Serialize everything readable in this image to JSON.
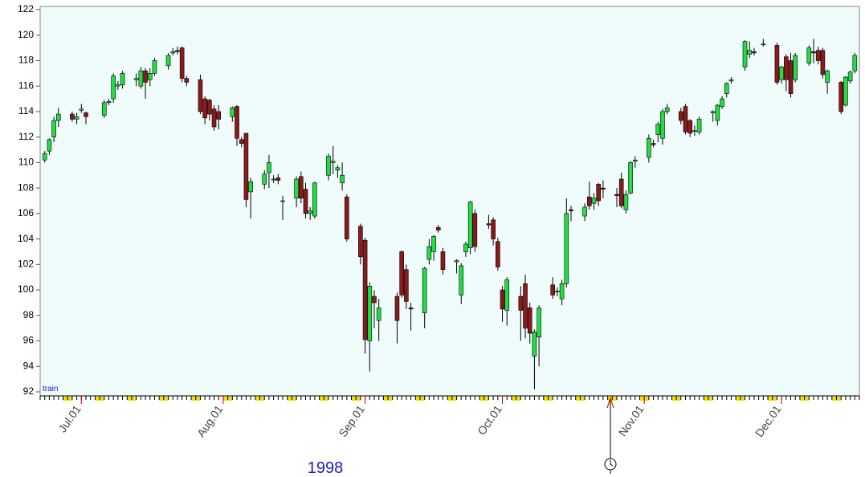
{
  "chart_data": {
    "type": "candlestick",
    "annotation": "train",
    "year_label": "1998",
    "up_color": "#22dd44",
    "down_color": "#8b1a1a",
    "grid": false,
    "ylim": [
      92,
      122
    ],
    "yticks": [
      92,
      94,
      96,
      98,
      100,
      102,
      104,
      106,
      108,
      110,
      112,
      114,
      116,
      118,
      120,
      122
    ],
    "xlim": [
      "1998-06-22",
      "1998-12-18"
    ],
    "xticks": [
      {
        "value": "1998-07-01",
        "label": "Jul.01"
      },
      {
        "value": "1998-08-01",
        "label": "Aug.01"
      },
      {
        "value": "1998-09-01",
        "label": "Sep.01"
      },
      {
        "value": "1998-10-01",
        "label": "Oct.01"
      },
      {
        "value": "1998-11-01",
        "label": "Nov.01"
      },
      {
        "value": "1998-12-01",
        "label": "Dec.01"
      }
    ],
    "x": [
      "1998-06-23",
      "1998-06-24",
      "1998-06-25",
      "1998-06-26",
      "1998-06-29",
      "1998-06-30",
      "1998-07-01",
      "1998-07-02",
      "1998-07-06",
      "1998-07-07",
      "1998-07-08",
      "1998-07-09",
      "1998-07-10",
      "1998-07-13",
      "1998-07-14",
      "1998-07-15",
      "1998-07-16",
      "1998-07-17",
      "1998-07-20",
      "1998-07-21",
      "1998-07-22",
      "1998-07-23",
      "1998-07-24",
      "1998-07-27",
      "1998-07-28",
      "1998-07-29",
      "1998-07-30",
      "1998-07-31",
      "1998-08-03",
      "1998-08-04",
      "1998-08-05",
      "1998-08-06",
      "1998-08-07",
      "1998-08-10",
      "1998-08-11",
      "1998-08-12",
      "1998-08-13",
      "1998-08-14",
      "1998-08-17",
      "1998-08-18",
      "1998-08-19",
      "1998-08-20",
      "1998-08-21",
      "1998-08-24",
      "1998-08-25",
      "1998-08-26",
      "1998-08-27",
      "1998-08-28",
      "1998-08-31",
      "1998-09-01",
      "1998-09-02",
      "1998-09-03",
      "1998-09-04",
      "1998-09-08",
      "1998-09-09",
      "1998-09-10",
      "1998-09-11",
      "1998-09-14",
      "1998-09-15",
      "1998-09-16",
      "1998-09-17",
      "1998-09-18",
      "1998-09-21",
      "1998-09-22",
      "1998-09-23",
      "1998-09-24",
      "1998-09-25",
      "1998-09-28",
      "1998-09-29",
      "1998-09-30",
      "1998-10-01",
      "1998-10-02",
      "1998-10-05",
      "1998-10-06",
      "1998-10-07",
      "1998-10-08",
      "1998-10-09",
      "1998-10-12",
      "1998-10-13",
      "1998-10-14",
      "1998-10-15",
      "1998-10-16",
      "1998-10-19",
      "1998-10-20",
      "1998-10-21",
      "1998-10-22",
      "1998-10-23",
      "1998-10-26",
      "1998-10-27",
      "1998-10-28",
      "1998-10-29",
      "1998-10-30",
      "1998-11-02",
      "1998-11-03",
      "1998-11-04",
      "1998-11-05",
      "1998-11-06",
      "1998-11-09",
      "1998-11-10",
      "1998-11-11",
      "1998-11-12",
      "1998-11-13",
      "1998-11-16",
      "1998-11-17",
      "1998-11-18",
      "1998-11-19",
      "1998-11-20",
      "1998-11-23",
      "1998-11-24",
      "1998-11-25",
      "1998-11-27",
      "1998-11-30",
      "1998-12-01",
      "1998-12-02",
      "1998-12-03",
      "1998-12-04",
      "1998-12-07",
      "1998-12-08",
      "1998-12-09",
      "1998-12-10",
      "1998-12-11",
      "1998-12-14",
      "1998-12-15",
      "1998-12-16",
      "1998-12-17"
    ],
    "open": [
      110.2,
      110.9,
      112.0,
      113.3,
      113.8,
      113.4,
      114.1,
      113.9,
      113.7,
      114.7,
      115.0,
      116.0,
      116.1,
      116.5,
      116.0,
      117.2,
      116.5,
      117.0,
      117.6,
      118.6,
      118.8,
      119.0,
      116.6,
      116.5,
      115.0,
      114.9,
      114.2,
      114.0,
      113.6,
      114.4,
      111.8,
      112.3,
      107.7,
      108.3,
      109.2,
      108.7,
      108.8,
      107.0,
      107.2,
      108.9,
      107.9,
      106.0,
      105.8,
      109.0,
      110.0,
      109.4,
      108.4,
      107.3,
      105.0,
      103.9,
      96.0,
      99.5,
      97.6,
      99.5,
      103.0,
      101.6,
      98.6,
      98.2,
      102.4,
      103.0,
      104.9,
      103.0,
      102.2,
      99.6,
      103.0,
      103.3,
      106.0,
      105.2,
      105.5,
      103.8,
      100.0,
      98.4,
      99.5,
      100.5,
      98.6,
      94.8,
      96.3,
      100.4,
      99.9,
      99.3,
      100.5,
      106.3,
      105.8,
      107.3,
      106.8,
      108.3,
      108.0,
      107.5,
      108.7,
      106.3,
      107.6,
      110.1,
      110.4,
      111.5,
      112.2,
      111.9,
      114.0,
      114.0,
      114.4,
      113.3,
      112.5,
      112.4,
      113.9,
      113.3,
      114.4,
      115.4,
      116.4,
      117.5,
      118.5,
      118.7,
      119.3,
      119.2,
      116.5,
      118.3,
      118.0,
      116.5,
      117.8,
      118.7,
      118.8,
      118.8,
      116.3,
      116.3,
      114.5,
      116.4,
      117.2
    ],
    "high": [
      110.9,
      111.9,
      113.6,
      114.3,
      114.0,
      113.9,
      114.6,
      114.0,
      114.9,
      115.0,
      117.0,
      116.4,
      117.2,
      117.0,
      117.5,
      117.4,
      117.4,
      118.2,
      118.6,
      119.0,
      119.1,
      119.1,
      116.8,
      116.9,
      115.2,
      115.0,
      114.5,
      114.5,
      114.4,
      114.5,
      112.0,
      112.3,
      108.8,
      109.4,
      110.6,
      109.0,
      109.1,
      107.4,
      108.9,
      109.3,
      108.4,
      106.5,
      108.5,
      110.7,
      111.3,
      109.8,
      110.0,
      107.5,
      105.2,
      104.1,
      100.6,
      100.0,
      99.3,
      99.8,
      103.1,
      102.0,
      99.0,
      101.8,
      104.0,
      104.3,
      105.1,
      103.3,
      102.4,
      102.1,
      103.8,
      107.0,
      106.3,
      105.9,
      105.7,
      104.1,
      100.3,
      101.0,
      100.3,
      101.2,
      99.0,
      96.9,
      98.8,
      101.0,
      100.2,
      100.8,
      107.2,
      106.6,
      106.8,
      108.5,
      107.6,
      108.4,
      108.6,
      108.0,
      109.2,
      107.8,
      110.1,
      110.5,
      112.2,
      111.8,
      113.2,
      114.2,
      114.6,
      114.3,
      114.6,
      113.4,
      112.9,
      113.6,
      114.1,
      114.6,
      115.2,
      116.3,
      116.7,
      119.6,
      119.5,
      119.0,
      119.7,
      119.4,
      117.6,
      118.5,
      118.6,
      118.6,
      119.2,
      119.7,
      119.1,
      119.0,
      117.3,
      116.4,
      116.8,
      117.2,
      118.6
    ],
    "low": [
      110.0,
      110.6,
      111.6,
      112.8,
      113.2,
      113.0,
      113.9,
      113.0,
      113.5,
      114.5,
      114.7,
      115.7,
      115.8,
      116.0,
      115.8,
      115.0,
      116.0,
      116.8,
      117.3,
      118.4,
      118.5,
      116.3,
      116.0,
      113.8,
      113.0,
      113.3,
      112.5,
      112.6,
      113.2,
      111.3,
      111.2,
      106.5,
      105.6,
      107.9,
      108.0,
      108.4,
      108.3,
      105.5,
      106.5,
      106.8,
      105.6,
      105.5,
      105.6,
      108.6,
      109.1,
      108.8,
      107.8,
      103.8,
      102.0,
      95.0,
      93.6,
      97.0,
      96.0,
      95.8,
      99.4,
      98.5,
      96.8,
      97.0,
      102.0,
      102.3,
      104.5,
      101.2,
      101.3,
      98.9,
      102.6,
      102.8,
      103.0,
      104.8,
      103.5,
      101.5,
      97.5,
      97.2,
      96.0,
      96.2,
      95.8,
      92.2,
      94.0,
      99.3,
      99.5,
      98.8,
      100.2,
      105.4,
      105.4,
      106.3,
      106.3,
      106.6,
      107.2,
      106.5,
      106.4,
      106.0,
      107.5,
      109.6,
      110.0,
      111.2,
      111.6,
      111.4,
      113.8,
      113.0,
      112.2,
      112.0,
      112.1,
      112.2,
      113.2,
      112.9,
      114.2,
      115.1,
      116.2,
      117.2,
      118.2,
      118.4,
      119.1,
      116.1,
      116.2,
      115.6,
      115.1,
      116.3,
      117.6,
      117.8,
      117.7,
      116.6,
      115.4,
      113.8,
      114.4,
      116.2,
      117.0
    ],
    "close": [
      110.7,
      111.8,
      113.3,
      113.8,
      113.4,
      113.6,
      114.2,
      113.6,
      114.7,
      114.8,
      116.8,
      116.1,
      117.0,
      116.6,
      117.2,
      116.3,
      117.0,
      118.0,
      118.4,
      118.7,
      118.7,
      116.6,
      116.3,
      114.0,
      113.5,
      113.8,
      112.8,
      113.4,
      114.3,
      111.9,
      111.5,
      107.1,
      108.5,
      109.1,
      110.0,
      108.7,
      108.6,
      107.0,
      108.7,
      107.2,
      106.0,
      106.2,
      108.4,
      110.5,
      110.1,
      109.6,
      109.0,
      104.0,
      102.6,
      96.1,
      100.3,
      99.0,
      98.6,
      97.6,
      99.6,
      99.1,
      98.5,
      101.7,
      103.4,
      104.2,
      104.7,
      101.6,
      102.3,
      101.9,
      103.6,
      106.9,
      103.4,
      105.1,
      104.0,
      101.8,
      98.5,
      100.8,
      98.4,
      97.0,
      96.6,
      96.7,
      98.6,
      99.6,
      99.9,
      100.5,
      106.0,
      106.2,
      106.5,
      106.6,
      107.2,
      107.0,
      107.9,
      107.4,
      106.6,
      107.5,
      110.0,
      110.2,
      111.9,
      111.4,
      113.0,
      114.0,
      114.3,
      113.3,
      112.4,
      112.3,
      112.5,
      113.4,
      114.0,
      114.5,
      115.0,
      116.2,
      116.5,
      119.5,
      118.8,
      118.6,
      119.3,
      116.3,
      117.5,
      116.5,
      115.4,
      118.4,
      119.0,
      118.6,
      118.0,
      116.9,
      117.2,
      114.0,
      116.7,
      117.1,
      118.4
    ]
  }
}
